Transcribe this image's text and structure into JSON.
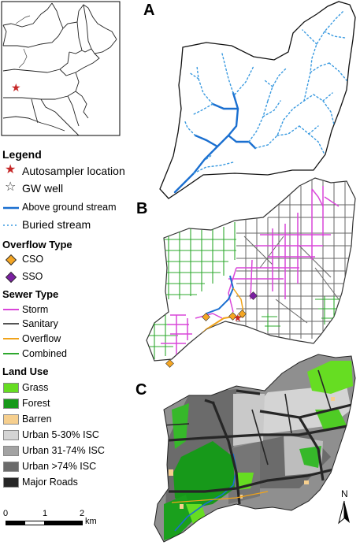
{
  "panels": {
    "a": "A",
    "b": "B",
    "c": "C"
  },
  "legend": {
    "title": "Legend",
    "autosampler": "Autosampler location",
    "gw_well": "GW well",
    "above_stream": "Above ground stream",
    "buried_stream": "Buried stream"
  },
  "overflow": {
    "title": "Overflow Type",
    "items": [
      "CSO",
      "SSO"
    ],
    "colors": [
      "#f5a623",
      "#7b1fa2"
    ]
  },
  "sewer": {
    "title": "Sewer Type",
    "items": [
      "Storm",
      "Sanitary",
      "Overflow",
      "Combined"
    ],
    "colors": [
      "#d946d9",
      "#555555",
      "#f0a31a",
      "#2ea82e"
    ]
  },
  "landuse": {
    "title": "Land Use",
    "items": [
      "Grass",
      "Forest",
      "Barren",
      "Urban 5-30% ISC",
      "Urban 31-74% ISC",
      "Urban >74% ISC",
      "Major Roads"
    ],
    "colors": [
      "#66dd22",
      "#17991a",
      "#f6cf8e",
      "#d4d4d4",
      "#a3a3a3",
      "#6b6b6b",
      "#262626"
    ]
  },
  "scalebar": {
    "ticks": [
      "0",
      "1",
      "2"
    ],
    "unit": "km"
  },
  "north": "N",
  "colors": {
    "stream": "#1a6fd0",
    "buried": "#3a9ae0",
    "star_red": "#c62828"
  }
}
